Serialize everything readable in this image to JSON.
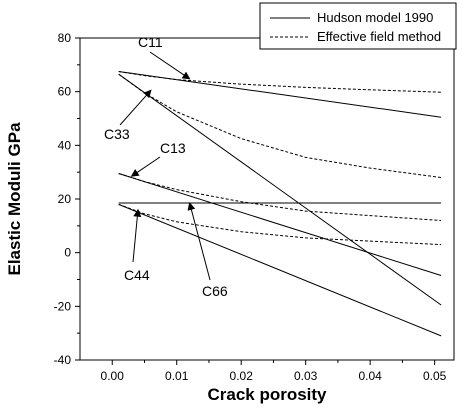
{
  "chart_data": {
    "type": "line",
    "xlabel": "Crack porosity",
    "ylabel": "Elastic Moduli GPa",
    "xlim": [
      -0.005,
      0.053
    ],
    "ylim": [
      -40,
      80
    ],
    "xticks": [
      0.0,
      0.01,
      0.02,
      0.03,
      0.04,
      0.05
    ],
    "xtick_labels": [
      "0.00",
      "0.01",
      "0.02",
      "0.03",
      "0.04",
      "0.05"
    ],
    "yticks": [
      -40,
      -20,
      0,
      20,
      40,
      60,
      80
    ],
    "ytick_labels": [
      "-40",
      "-20",
      "0",
      "20",
      "40",
      "60",
      "80"
    ],
    "grid": false,
    "legend": {
      "position": "top-right",
      "entries": [
        {
          "label": "Hudson model 1990",
          "style": "solid"
        },
        {
          "label": "Effective field method",
          "style": "dashed"
        }
      ]
    },
    "series": [
      {
        "group": "Hudson model 1990",
        "style": "solid",
        "x": [
          0.001,
          0.051
        ],
        "y": [
          67.5,
          50.5
        ]
      },
      {
        "group": "Hudson model 1990",
        "style": "solid",
        "x": [
          0.001,
          0.051
        ],
        "y": [
          66.5,
          -19.5
        ]
      },
      {
        "group": "Hudson model 1990",
        "style": "solid",
        "x": [
          0.001,
          0.051
        ],
        "y": [
          29.5,
          -8.5
        ]
      },
      {
        "group": "Hudson model 1990",
        "style": "solid",
        "x": [
          0.001,
          0.051
        ],
        "y": [
          18.5,
          18.5
        ]
      },
      {
        "group": "Hudson model 1990",
        "style": "solid",
        "x": [
          0.001,
          0.051
        ],
        "y": [
          18.0,
          -31.0
        ]
      },
      {
        "group": "Effective field method",
        "style": "dashed",
        "x": [
          0.001,
          0.005,
          0.01,
          0.02,
          0.03,
          0.04,
          0.051
        ],
        "y": [
          67.5,
          66.0,
          64.5,
          62.8,
          61.6,
          60.7,
          59.8
        ]
      },
      {
        "group": "Effective field method",
        "style": "dashed",
        "x": [
          0.001,
          0.005,
          0.01,
          0.02,
          0.03,
          0.04,
          0.051
        ],
        "y": [
          66.5,
          59.5,
          52.5,
          42.5,
          35.5,
          31.5,
          28.0
        ]
      },
      {
        "group": "Effective field method",
        "style": "dashed",
        "x": [
          0.001,
          0.005,
          0.01,
          0.02,
          0.03,
          0.04,
          0.051
        ],
        "y": [
          29.5,
          26.5,
          23.5,
          19.0,
          15.5,
          13.8,
          12.0
        ]
      },
      {
        "group": "Effective field method",
        "style": "dashed",
        "x": [
          0.001,
          0.005,
          0.01,
          0.02,
          0.03,
          0.04,
          0.051
        ],
        "y": [
          18.0,
          14.5,
          11.5,
          7.8,
          5.5,
          4.3,
          3.0
        ]
      }
    ],
    "annotations": [
      {
        "text": "C11",
        "arrow_to": [
          0.012,
          64.8
        ]
      },
      {
        "text": "C33",
        "arrow_to": [
          0.006,
          60.5
        ]
      },
      {
        "text": "C13",
        "arrow_to": [
          0.003,
          28.5
        ]
      },
      {
        "text": "C66",
        "arrow_to": [
          0.012,
          18.5
        ]
      },
      {
        "text": "C44",
        "arrow_to": [
          0.004,
          16.0
        ]
      }
    ]
  }
}
